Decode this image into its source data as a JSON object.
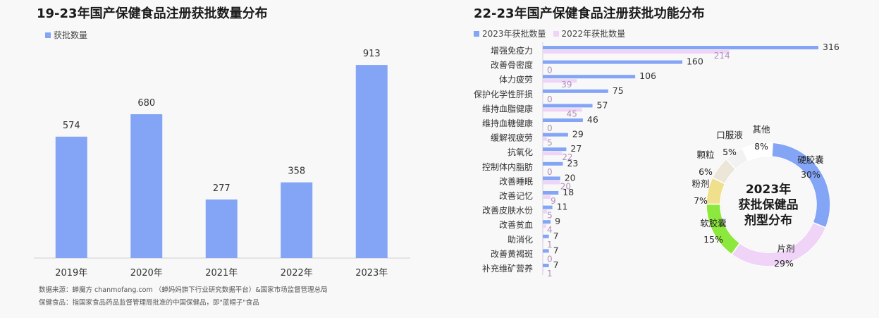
{
  "left_chart": {
    "title": "19-23年国产保健食品注册获批数量分布",
    "legend": "获批数量",
    "color": "#84a5f5"
  },
  "right_chart": {
    "title": "22-23年国产保健食品注册获批功能分布",
    "legend": [
      "2023年获批数量",
      "2022年获批数量"
    ],
    "colors": {
      "y2023": "#84a5f5",
      "y2022": "#f0d4f7"
    }
  },
  "donut": {
    "center_lines": [
      "2023年",
      "获批保健品",
      "剂型分布"
    ]
  },
  "sources": {
    "line1": "数据来源：蝉魔方 chanmofang.com （蝉妈妈旗下行业研究数据平台）&国家市场监督管理总局",
    "line2": "保健食品：指国家食品药品监督管理局批准的中国保健品，即\"蓝帽子\"食品"
  },
  "chart_data": [
    {
      "type": "bar",
      "title": "19-23年国产保健食品注册获批数量分布",
      "categories": [
        "2019年",
        "2020年",
        "2021年",
        "2022年",
        "2023年"
      ],
      "series": [
        {
          "name": "获批数量",
          "values": [
            574,
            680,
            277,
            358,
            913
          ]
        }
      ],
      "ylim": [
        0,
        1000
      ],
      "grid": false,
      "legend_position": "top-left"
    },
    {
      "type": "bar",
      "orientation": "horizontal",
      "title": "22-23年国产保健食品注册获批功能分布",
      "categories": [
        "增强免疫力",
        "改善骨密度",
        "体力疲劳",
        "保护化学性肝损",
        "维持血脂健康",
        "维持血糖健康",
        "缓解视疲劳",
        "抗氧化",
        "控制体内脂肪",
        "改善睡眠",
        "改善记忆",
        "改善皮肤水份",
        "改善贫血",
        "助消化",
        "改善黄褐斑",
        "补充维矿营养"
      ],
      "series": [
        {
          "name": "2023年获批数量",
          "values": [
            316,
            160,
            106,
            75,
            57,
            46,
            29,
            27,
            23,
            20,
            18,
            11,
            9,
            7,
            7,
            7
          ]
        },
        {
          "name": "2022年获批数量",
          "values": [
            214,
            0,
            39,
            0,
            45,
            0,
            5,
            22,
            0,
            20,
            9,
            5,
            4,
            1,
            0,
            1
          ]
        }
      ],
      "grid": false,
      "legend_position": "top-left"
    },
    {
      "type": "pie",
      "style": "donut",
      "title": "2023年获批保健品剂型分布",
      "slices": [
        {
          "label": "硬胶囊",
          "value": 30,
          "display": "30%",
          "color": "#84a5f5"
        },
        {
          "label": "片剂",
          "value": 29,
          "display": "29%",
          "color": "#f0d4f7"
        },
        {
          "label": "软胶囊",
          "value": 15,
          "display": "15%",
          "color": "#8ce83c"
        },
        {
          "label": "粉剂",
          "value": 7,
          "display": "7%",
          "color": "#f0e08c"
        },
        {
          "label": "颗粒",
          "value": 6,
          "display": "6%",
          "color": "#ebe6d8"
        },
        {
          "label": "口服液",
          "value": 5,
          "display": "5%",
          "color": "#f2f2f2"
        },
        {
          "label": "其他",
          "value": 8,
          "display": "8%",
          "color": "#ffffff"
        }
      ]
    }
  ]
}
